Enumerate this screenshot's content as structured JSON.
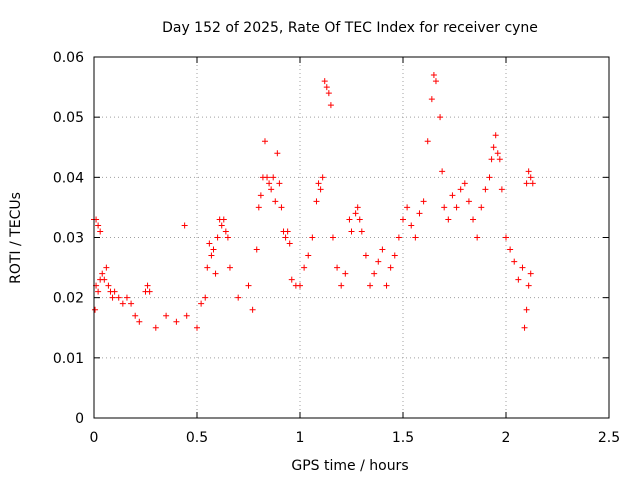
{
  "chart_data": {
    "type": "scatter",
    "title": "Day 152 of 2025, Rate Of TEC Index for receiver cyne",
    "xlabel": "GPS time / hours",
    "ylabel": "ROTI / TECUs",
    "xlim": [
      0,
      2.5
    ],
    "ylim": [
      0,
      0.06
    ],
    "xticks": [
      "0",
      "0.5",
      "1",
      "1.5",
      "2",
      "2.5"
    ],
    "yticks": [
      "0",
      "0.01",
      "0.02",
      "0.03",
      "0.04",
      "0.05",
      "0.06"
    ],
    "grid": true,
    "legend": "none",
    "marker": "+",
    "color": "#ff0000",
    "series": [
      {
        "points": [
          [
            0.0,
            0.033
          ],
          [
            0.01,
            0.033
          ],
          [
            0.02,
            0.032
          ],
          [
            0.03,
            0.031
          ],
          [
            0.005,
            0.018
          ],
          [
            0.01,
            0.022
          ],
          [
            0.02,
            0.021
          ],
          [
            0.03,
            0.023
          ],
          [
            0.04,
            0.024
          ],
          [
            0.05,
            0.023
          ],
          [
            0.06,
            0.025
          ],
          [
            0.07,
            0.022
          ],
          [
            0.08,
            0.021
          ],
          [
            0.09,
            0.02
          ],
          [
            0.1,
            0.021
          ],
          [
            0.12,
            0.02
          ],
          [
            0.14,
            0.019
          ],
          [
            0.16,
            0.02
          ],
          [
            0.18,
            0.019
          ],
          [
            0.2,
            0.017
          ],
          [
            0.22,
            0.016
          ],
          [
            0.25,
            0.021
          ],
          [
            0.26,
            0.022
          ],
          [
            0.27,
            0.021
          ],
          [
            0.3,
            0.015
          ],
          [
            0.35,
            0.017
          ],
          [
            0.4,
            0.016
          ],
          [
            0.44,
            0.032
          ],
          [
            0.45,
            0.017
          ],
          [
            0.5,
            0.015
          ],
          [
            0.52,
            0.019
          ],
          [
            0.54,
            0.02
          ],
          [
            0.55,
            0.025
          ],
          [
            0.56,
            0.029
          ],
          [
            0.57,
            0.027
          ],
          [
            0.58,
            0.028
          ],
          [
            0.59,
            0.024
          ],
          [
            0.6,
            0.03
          ],
          [
            0.61,
            0.033
          ],
          [
            0.62,
            0.032
          ],
          [
            0.63,
            0.033
          ],
          [
            0.64,
            0.031
          ],
          [
            0.65,
            0.03
          ],
          [
            0.66,
            0.025
          ],
          [
            0.7,
            0.02
          ],
          [
            0.75,
            0.022
          ],
          [
            0.77,
            0.018
          ],
          [
            0.79,
            0.028
          ],
          [
            0.8,
            0.035
          ],
          [
            0.81,
            0.037
          ],
          [
            0.82,
            0.04
          ],
          [
            0.83,
            0.046
          ],
          [
            0.84,
            0.04
          ],
          [
            0.85,
            0.039
          ],
          [
            0.86,
            0.038
          ],
          [
            0.87,
            0.04
          ],
          [
            0.88,
            0.036
          ],
          [
            0.89,
            0.044
          ],
          [
            0.9,
            0.039
          ],
          [
            0.91,
            0.035
          ],
          [
            0.92,
            0.031
          ],
          [
            0.93,
            0.03
          ],
          [
            0.94,
            0.031
          ],
          [
            0.95,
            0.029
          ],
          [
            0.96,
            0.023
          ],
          [
            0.98,
            0.022
          ],
          [
            1.0,
            0.022
          ],
          [
            1.02,
            0.025
          ],
          [
            1.04,
            0.027
          ],
          [
            1.06,
            0.03
          ],
          [
            1.08,
            0.036
          ],
          [
            1.09,
            0.039
          ],
          [
            1.1,
            0.038
          ],
          [
            1.11,
            0.04
          ],
          [
            1.12,
            0.056
          ],
          [
            1.13,
            0.055
          ],
          [
            1.14,
            0.054
          ],
          [
            1.15,
            0.052
          ],
          [
            1.16,
            0.03
          ],
          [
            1.18,
            0.025
          ],
          [
            1.2,
            0.022
          ],
          [
            1.22,
            0.024
          ],
          [
            1.24,
            0.033
          ],
          [
            1.25,
            0.031
          ],
          [
            1.27,
            0.034
          ],
          [
            1.28,
            0.035
          ],
          [
            1.29,
            0.033
          ],
          [
            1.3,
            0.031
          ],
          [
            1.32,
            0.027
          ],
          [
            1.34,
            0.022
          ],
          [
            1.36,
            0.024
          ],
          [
            1.38,
            0.026
          ],
          [
            1.4,
            0.028
          ],
          [
            1.42,
            0.022
          ],
          [
            1.44,
            0.025
          ],
          [
            1.46,
            0.027
          ],
          [
            1.48,
            0.03
          ],
          [
            1.5,
            0.033
          ],
          [
            1.52,
            0.035
          ],
          [
            1.54,
            0.032
          ],
          [
            1.56,
            0.03
          ],
          [
            1.58,
            0.034
          ],
          [
            1.6,
            0.036
          ],
          [
            1.62,
            0.046
          ],
          [
            1.64,
            0.053
          ],
          [
            1.65,
            0.057
          ],
          [
            1.66,
            0.056
          ],
          [
            1.68,
            0.05
          ],
          [
            1.69,
            0.041
          ],
          [
            1.7,
            0.035
          ],
          [
            1.72,
            0.033
          ],
          [
            1.74,
            0.037
          ],
          [
            1.76,
            0.035
          ],
          [
            1.78,
            0.038
          ],
          [
            1.8,
            0.039
          ],
          [
            1.82,
            0.036
          ],
          [
            1.84,
            0.033
          ],
          [
            1.86,
            0.03
          ],
          [
            1.88,
            0.035
          ],
          [
            1.9,
            0.038
          ],
          [
            1.92,
            0.04
          ],
          [
            1.93,
            0.043
          ],
          [
            1.94,
            0.045
          ],
          [
            1.95,
            0.047
          ],
          [
            1.96,
            0.044
          ],
          [
            1.97,
            0.043
          ],
          [
            1.98,
            0.038
          ],
          [
            2.0,
            0.03
          ],
          [
            2.02,
            0.028
          ],
          [
            2.04,
            0.026
          ],
          [
            2.06,
            0.023
          ],
          [
            2.08,
            0.025
          ],
          [
            2.1,
            0.039
          ],
          [
            2.11,
            0.041
          ],
          [
            2.12,
            0.04
          ],
          [
            2.13,
            0.039
          ],
          [
            2.12,
            0.024
          ],
          [
            2.11,
            0.022
          ],
          [
            2.1,
            0.018
          ],
          [
            2.09,
            0.015
          ]
        ]
      }
    ]
  }
}
